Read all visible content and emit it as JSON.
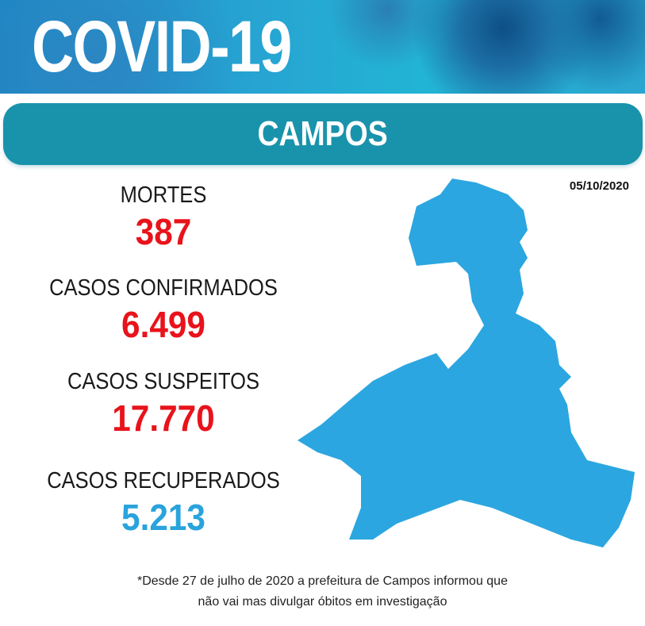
{
  "header": {
    "title": "COVID-19"
  },
  "city": {
    "name": "CAMPOS"
  },
  "date": "05/10/2020",
  "stats": [
    {
      "label": "MORTES",
      "value": "387",
      "color": "#e8131b"
    },
    {
      "label": "CASOS CONFIRMADOS",
      "value": "6.499",
      "color": "#e8131b"
    },
    {
      "label": "CASOS SUSPEITOS",
      "value": "17.770",
      "color": "#e8131b"
    },
    {
      "label": "CASOS RECUPERADOS",
      "value": "5.213",
      "color": "#2aa3dc"
    }
  ],
  "note": {
    "line1": "*Desde 27 de julho de 2020 a prefeitura de Campos informou que",
    "line2": "não vai mas divulgar óbitos em investigação"
  },
  "map": {
    "color": "#2ba6e0"
  }
}
